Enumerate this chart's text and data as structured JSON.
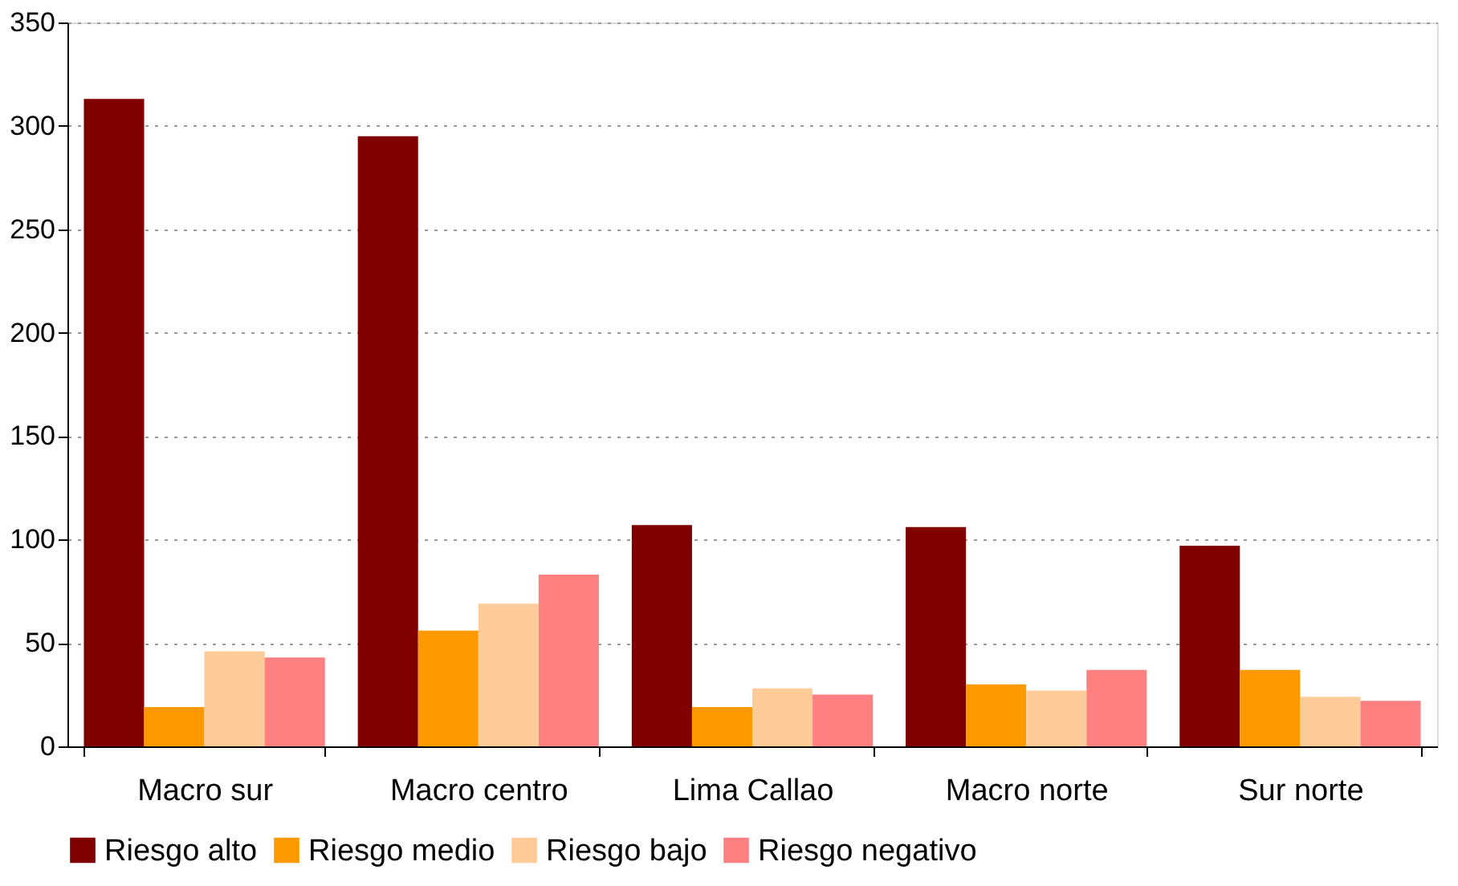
{
  "chart_data": {
    "type": "bar",
    "categories": [
      "Macro sur",
      "Macro centro",
      "Lima Callao",
      "Macro norte",
      "Sur norte"
    ],
    "series": [
      {
        "name": "Riesgo alto",
        "color": "#800000",
        "values": [
          313,
          295,
          107,
          106,
          97
        ]
      },
      {
        "name": "Riesgo medio",
        "color": "#ff9900",
        "values": [
          19,
          56,
          19,
          30,
          37
        ]
      },
      {
        "name": "Riesgo bajo",
        "color": "#ffcc99",
        "values": [
          46,
          69,
          28,
          27,
          24
        ]
      },
      {
        "name": "Riesgo negativo",
        "color": "#ff8080",
        "values": [
          43,
          83,
          25,
          37,
          22
        ]
      }
    ],
    "ylim": [
      0,
      350
    ],
    "yticks": [
      0,
      50,
      100,
      150,
      200,
      250,
      300,
      350
    ],
    "grid": "y",
    "legend": "bottom"
  }
}
